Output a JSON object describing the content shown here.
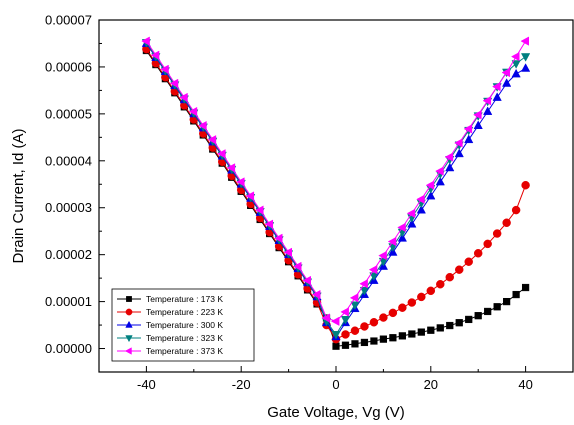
{
  "chart_data": {
    "type": "scatter",
    "xlabel": "Gate Voltage, Vg (V)",
    "ylabel": "Drain Current, Id (A)",
    "xlim": [
      -50,
      50
    ],
    "ylim": [
      -5e-06,
      7e-05
    ],
    "x_ticks": [
      {
        "value": -40,
        "label": "-40"
      },
      {
        "value": -20,
        "label": "-20"
      },
      {
        "value": 0,
        "label": "0"
      },
      {
        "value": 20,
        "label": "20"
      },
      {
        "value": 40,
        "label": "40"
      }
    ],
    "y_ticks": [
      {
        "value": 0,
        "label": "0.00000"
      },
      {
        "value": 1e-05,
        "label": "0.00001"
      },
      {
        "value": 2e-05,
        "label": "0.00002"
      },
      {
        "value": 3e-05,
        "label": "0.00003"
      },
      {
        "value": 4e-05,
        "label": "0.00004"
      },
      {
        "value": 5e-05,
        "label": "0.00005"
      },
      {
        "value": 6e-05,
        "label": "0.00006"
      },
      {
        "value": 7e-05,
        "label": "0.00007"
      }
    ],
    "legend_position": "bottom-left",
    "grid": false,
    "series": [
      {
        "name": "Temperature : 173 K",
        "color": "#000000",
        "marker": "square",
        "x": [
          -40,
          -38,
          -36,
          -34,
          -32,
          -30,
          -28,
          -26,
          -24,
          -22,
          -20,
          -18,
          -16,
          -14,
          -12,
          -10,
          -8,
          -6,
          -4,
          -2,
          0,
          2,
          4,
          6,
          8,
          10,
          12,
          14,
          16,
          18,
          20,
          22,
          24,
          26,
          28,
          30,
          32,
          34,
          36,
          38,
          40
        ],
        "y": [
          6.35e-05,
          6.05e-05,
          5.75e-05,
          5.45e-05,
          5.15e-05,
          4.85e-05,
          4.55e-05,
          4.25e-05,
          3.95e-05,
          3.65e-05,
          3.35e-05,
          3.05e-05,
          2.75e-05,
          2.45e-05,
          2.15e-05,
          1.85e-05,
          1.55e-05,
          1.25e-05,
          9.5e-06,
          6.5e-06,
          5e-07,
          7e-07,
          1e-06,
          1.3e-06,
          1.6e-06,
          2e-06,
          2.3e-06,
          2.7e-06,
          3.1e-06,
          3.5e-06,
          3.9e-06,
          4.4e-06,
          4.9e-06,
          5.5e-06,
          6.2e-06,
          7e-06,
          7.9e-06,
          8.9e-06,
          1e-05,
          1.15e-05,
          1.3e-05
        ]
      },
      {
        "name": "Temperature : 223 K",
        "color": "#e60000",
        "marker": "circle",
        "x": [
          -40,
          -38,
          -36,
          -34,
          -32,
          -30,
          -28,
          -26,
          -24,
          -22,
          -20,
          -18,
          -16,
          -14,
          -12,
          -10,
          -8,
          -6,
          -4,
          -2,
          0,
          2,
          4,
          6,
          8,
          10,
          12,
          14,
          16,
          18,
          20,
          22,
          24,
          26,
          28,
          30,
          32,
          34,
          36,
          38,
          40
        ],
        "y": [
          6.38e-05,
          6.08e-05,
          5.78e-05,
          5.48e-05,
          5.18e-05,
          4.88e-05,
          4.58e-05,
          4.28e-05,
          3.98e-05,
          3.68e-05,
          3.38e-05,
          3.08e-05,
          2.78e-05,
          2.48e-05,
          2.18e-05,
          1.88e-05,
          1.58e-05,
          1.28e-05,
          9.8e-06,
          5e-06,
          2e-06,
          3e-06,
          3.8e-06,
          4.7e-06,
          5.6e-06,
          6.6e-06,
          7.6e-06,
          8.7e-06,
          9.8e-06,
          1.1e-05,
          1.23e-05,
          1.37e-05,
          1.52e-05,
          1.68e-05,
          1.85e-05,
          2.03e-05,
          2.23e-05,
          2.45e-05,
          2.68e-05,
          2.95e-05,
          3.48e-05
        ]
      },
      {
        "name": "Temperature : 300 K",
        "color": "#0000e6",
        "marker": "triangle-up",
        "x": [
          -40,
          -38,
          -36,
          -34,
          -32,
          -30,
          -28,
          -26,
          -24,
          -22,
          -20,
          -18,
          -16,
          -14,
          -12,
          -10,
          -8,
          -6,
          -4,
          -2,
          0,
          2,
          4,
          6,
          8,
          10,
          12,
          14,
          16,
          18,
          20,
          22,
          24,
          26,
          28,
          30,
          32,
          34,
          36,
          38,
          40
        ],
        "y": [
          6.5e-05,
          6.2e-05,
          5.9e-05,
          5.6e-05,
          5.3e-05,
          5e-05,
          4.7e-05,
          4.4e-05,
          4.1e-05,
          3.8e-05,
          3.5e-05,
          3.2e-05,
          2.9e-05,
          2.6e-05,
          2.3e-05,
          2e-05,
          1.7e-05,
          1.4e-05,
          1.1e-05,
          5.5e-06,
          2.5e-06,
          5.5e-06,
          8.5e-06,
          1.15e-05,
          1.45e-05,
          1.75e-05,
          2.05e-05,
          2.35e-05,
          2.65e-05,
          2.95e-05,
          3.25e-05,
          3.55e-05,
          3.85e-05,
          4.15e-05,
          4.45e-05,
          4.75e-05,
          5.05e-05,
          5.35e-05,
          5.65e-05,
          5.85e-05,
          5.97e-05
        ]
      },
      {
        "name": "Temperature : 323 K",
        "color": "#008080",
        "marker": "triangle-down",
        "x": [
          -40,
          -38,
          -36,
          -34,
          -32,
          -30,
          -28,
          -26,
          -24,
          -22,
          -20,
          -18,
          -16,
          -14,
          -12,
          -10,
          -8,
          -6,
          -4,
          -2,
          0,
          2,
          4,
          6,
          8,
          10,
          12,
          14,
          16,
          18,
          20,
          22,
          24,
          26,
          28,
          30,
          32,
          34,
          36,
          38,
          40
        ],
        "y": [
          6.52e-05,
          6.22e-05,
          5.92e-05,
          5.62e-05,
          5.32e-05,
          5.02e-05,
          4.72e-05,
          4.42e-05,
          4.12e-05,
          3.82e-05,
          3.52e-05,
          3.22e-05,
          2.92e-05,
          2.62e-05,
          2.32e-05,
          2.02e-05,
          1.72e-05,
          1.42e-05,
          1.12e-05,
          5.8e-06,
          3e-06,
          6.2e-06,
          9.3e-06,
          1.24e-05,
          1.55e-05,
          1.86e-05,
          2.17e-05,
          2.48e-05,
          2.79e-05,
          3.1e-05,
          3.41e-05,
          3.72e-05,
          4.03e-05,
          4.34e-05,
          4.65e-05,
          4.96e-05,
          5.27e-05,
          5.58e-05,
          5.89e-05,
          6.07e-05,
          6.22e-05
        ]
      },
      {
        "name": "Temperature : 373 K",
        "color": "#ff00ff",
        "marker": "triangle-left",
        "x": [
          -40,
          -38,
          -36,
          -34,
          -32,
          -30,
          -28,
          -26,
          -24,
          -22,
          -20,
          -18,
          -16,
          -14,
          -12,
          -10,
          -8,
          -6,
          -4,
          -2,
          0,
          2,
          4,
          6,
          8,
          10,
          12,
          14,
          16,
          18,
          20,
          22,
          24,
          26,
          28,
          30,
          32,
          34,
          36,
          38,
          40
        ],
        "y": [
          6.55e-05,
          6.25e-05,
          5.95e-05,
          5.65e-05,
          5.35e-05,
          5.05e-05,
          4.75e-05,
          4.45e-05,
          4.15e-05,
          3.85e-05,
          3.55e-05,
          3.25e-05,
          2.95e-05,
          2.65e-05,
          2.35e-05,
          2.05e-05,
          1.75e-05,
          1.45e-05,
          1.15e-05,
          6.5e-06,
          5.8e-06,
          7.8e-06,
          1.08e-05,
          1.38e-05,
          1.68e-05,
          1.98e-05,
          2.28e-05,
          2.58e-05,
          2.88e-05,
          3.18e-05,
          3.48e-05,
          3.78e-05,
          4.08e-05,
          4.38e-05,
          4.68e-05,
          4.98e-05,
          5.28e-05,
          5.58e-05,
          5.88e-05,
          6.22e-05,
          6.55e-05
        ]
      }
    ]
  }
}
